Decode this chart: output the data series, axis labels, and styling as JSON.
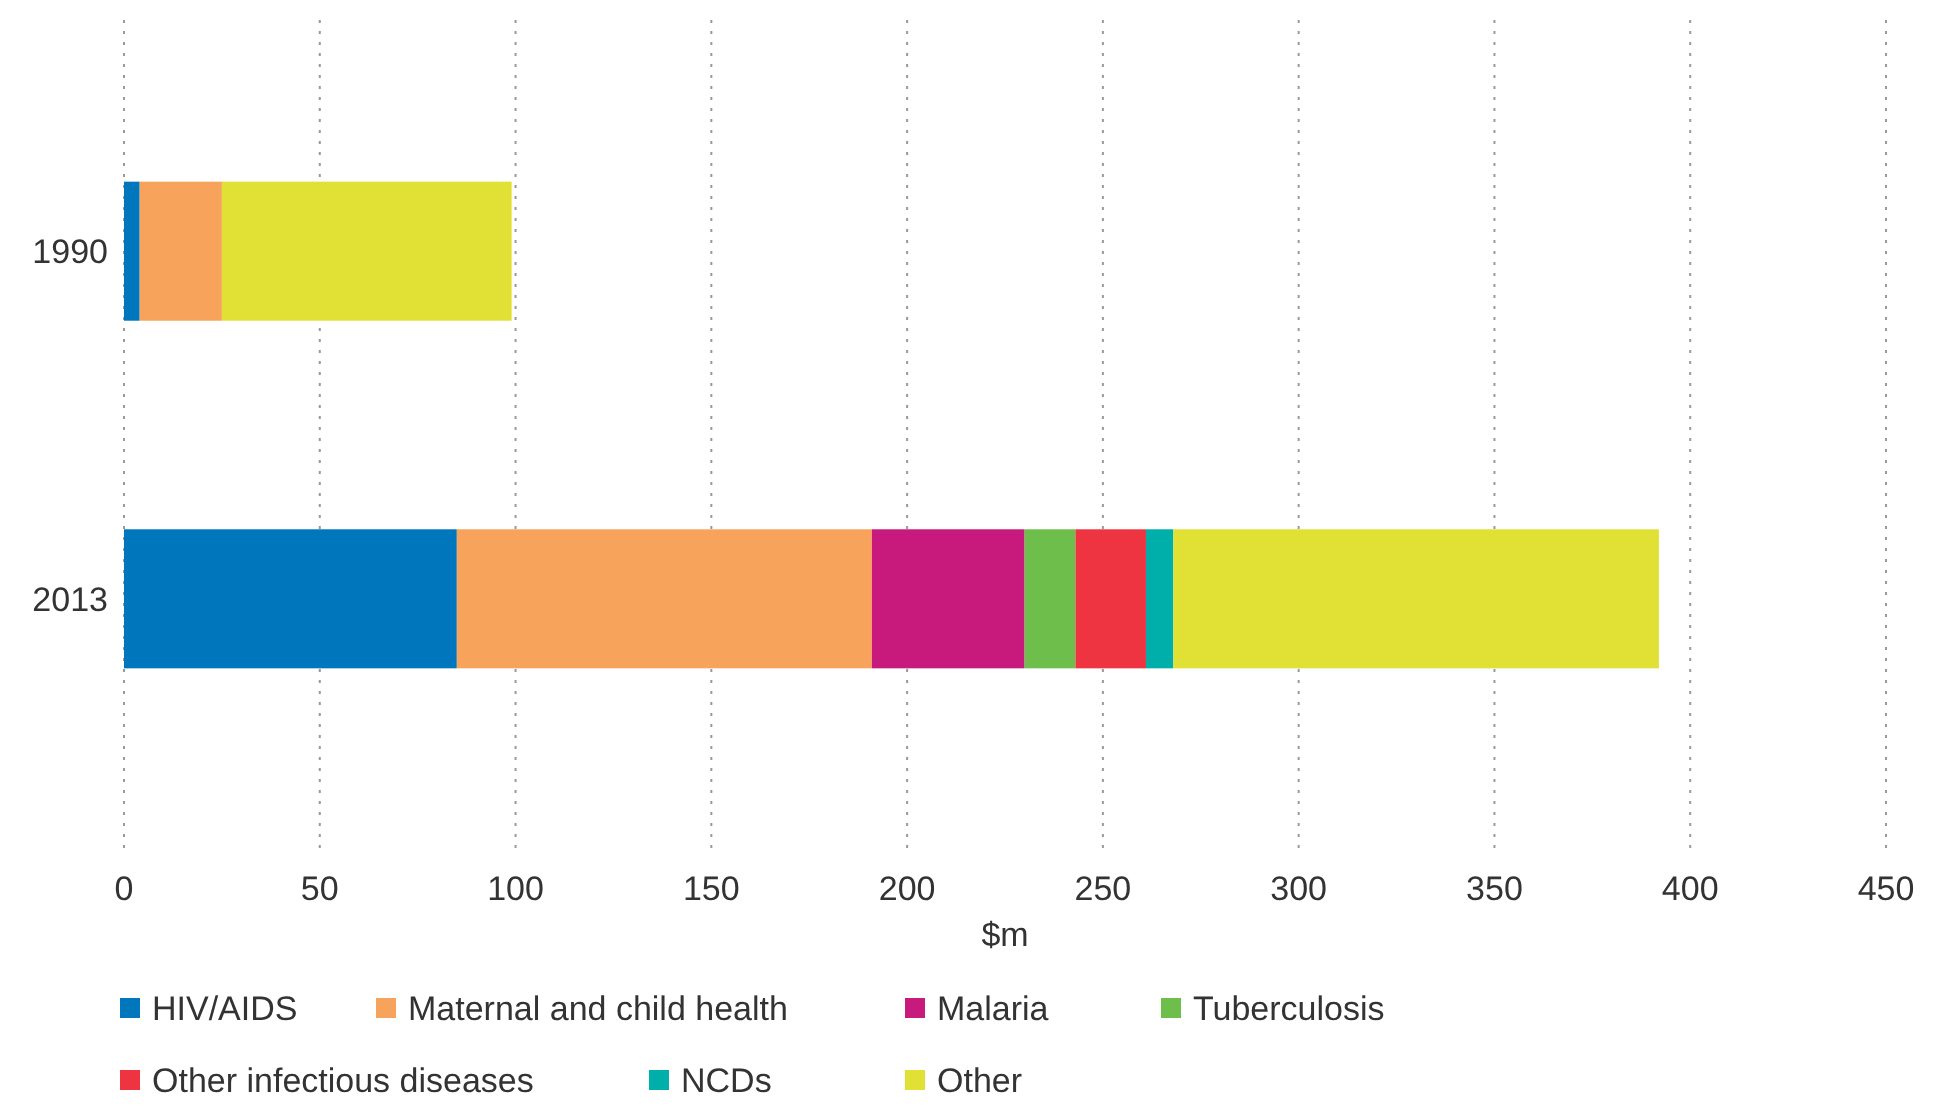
{
  "chart_data": {
    "type": "bar",
    "orientation": "horizontal",
    "stacked": true,
    "xlabel": "$m",
    "categories": [
      "1990",
      "2013"
    ],
    "series": [
      {
        "name": "HIV/AIDS",
        "color": "#0077bd",
        "values": [
          4,
          85
        ]
      },
      {
        "name": "Maternal and child health",
        "color": "#f7a35c",
        "values": [
          21,
          106
        ]
      },
      {
        "name": "Malaria",
        "color": "#c8197d",
        "values": [
          null,
          39
        ]
      },
      {
        "name": "Tuberculosis",
        "color": "#6ebe4b",
        "values": [
          null,
          13
        ]
      },
      {
        "name": "Other infectious diseases",
        "color": "#ee3341",
        "values": [
          null,
          18
        ]
      },
      {
        "name": "NCDs",
        "color": "#00afaa",
        "values": [
          null,
          7
        ]
      },
      {
        "name": "Other",
        "color": "#e1e135",
        "values": [
          74,
          124
        ]
      }
    ],
    "xlim": [
      0,
      450
    ],
    "xticks": [
      0,
      50,
      100,
      150,
      200,
      250,
      300,
      350,
      400,
      450
    ],
    "grid": "x",
    "legend": "bottom"
  }
}
